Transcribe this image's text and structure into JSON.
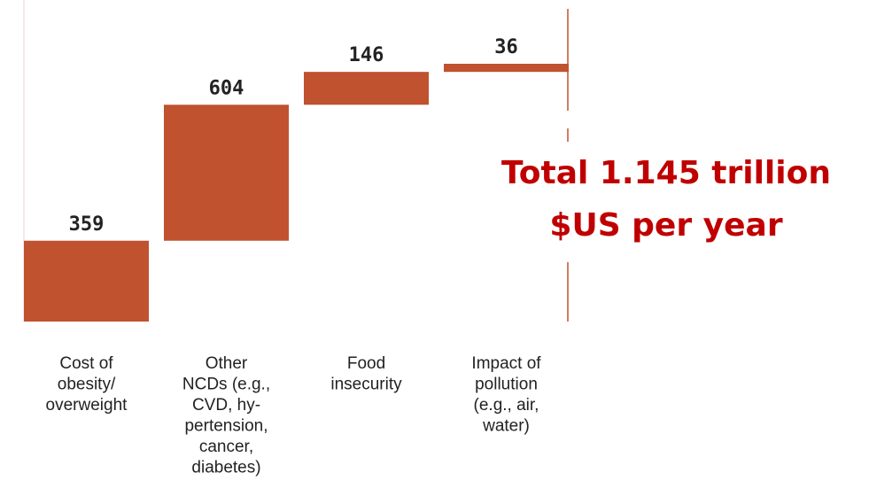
{
  "chart_data": {
    "type": "waterfall",
    "categories": [
      [
        "Cost of",
        "obesity/",
        "overweight"
      ],
      [
        "Other",
        "NCDs (e.g.,",
        "CVD, hy-",
        "pertension,",
        "cancer,",
        "diabetes)"
      ],
      [
        "Food",
        "insecurity"
      ],
      [
        "Impact of",
        "pollution",
        "(e.g., air,",
        "water)"
      ]
    ],
    "values": [
      359,
      604,
      146,
      36
    ],
    "color": "#c0522f",
    "annotation": [
      "Total 1.145 trillion",
      "$US per year"
    ]
  }
}
